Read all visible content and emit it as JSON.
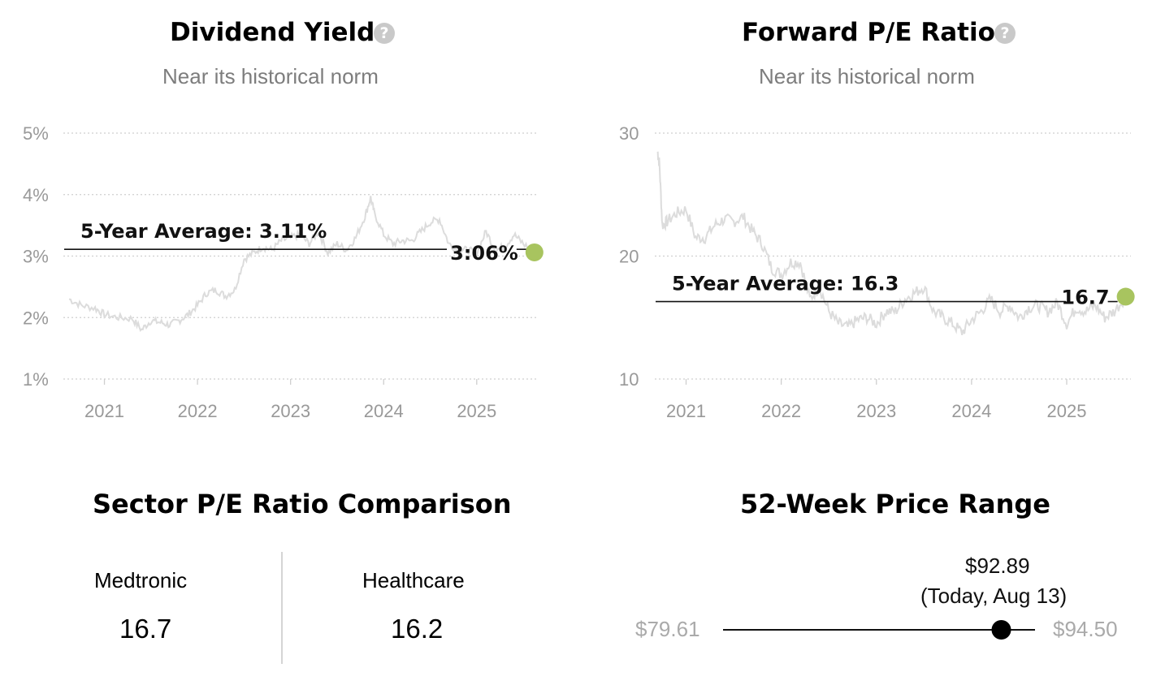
{
  "dividend": {
    "title": "Dividend Yield",
    "help_icon": "question-circle-icon",
    "subtitle": "Near its historical norm",
    "average_label": "5-Year Average: 3.11%",
    "current_label": "3:06%"
  },
  "forward_pe": {
    "title": "Forward P/E Ratio",
    "help_icon": "question-circle-icon",
    "subtitle": "Near its historical norm",
    "average_label": "5-Year Average: 16.3",
    "current_label": "16.7"
  },
  "chart_data": [
    {
      "type": "line",
      "title": "Dividend Yield",
      "y_tick_labels": [
        "5%",
        "4%",
        "3%",
        "2%",
        "1%"
      ],
      "y_ticks": [
        5,
        4,
        3,
        2,
        1
      ],
      "ylim": [
        1,
        5
      ],
      "x_tick_labels": [
        "2021",
        "2022",
        "2023",
        "2024",
        "2025"
      ],
      "x_ticks": [
        2021,
        2022,
        2023,
        2024,
        2025
      ],
      "xlim": [
        2020.62,
        2025.7
      ],
      "grid": "horizontal dotted",
      "series_color": "#dcdcdc",
      "average": 3.11,
      "current": {
        "x": 2025.62,
        "y": 3.06
      },
      "current_color": "#a8c45f",
      "x": [
        2020.62,
        2020.75,
        2020.9,
        2021.0,
        2021.15,
        2021.3,
        2021.4,
        2021.5,
        2021.6,
        2021.7,
        2021.8,
        2021.9,
        2022.0,
        2022.1,
        2022.2,
        2022.3,
        2022.4,
        2022.5,
        2022.6,
        2022.7,
        2022.8,
        2022.9,
        2023.0,
        2023.1,
        2023.2,
        2023.3,
        2023.4,
        2023.5,
        2023.6,
        2023.7,
        2023.8,
        2023.86,
        2023.9,
        2024.0,
        2024.1,
        2024.2,
        2024.3,
        2024.4,
        2024.5,
        2024.6,
        2024.7,
        2024.8,
        2024.9,
        2025.0,
        2025.1,
        2025.2,
        2025.3,
        2025.4,
        2025.5,
        2025.62
      ],
      "values": [
        2.3,
        2.2,
        2.15,
        2.05,
        2.0,
        1.98,
        1.8,
        1.95,
        1.92,
        1.88,
        1.95,
        2.05,
        2.2,
        2.4,
        2.45,
        2.35,
        2.45,
        2.95,
        3.05,
        3.15,
        3.1,
        3.25,
        3.3,
        3.35,
        3.2,
        3.4,
        3.05,
        3.2,
        3.1,
        3.3,
        3.65,
        3.95,
        3.7,
        3.35,
        3.2,
        3.25,
        3.25,
        3.4,
        3.55,
        3.6,
        3.2,
        3.1,
        3.1,
        3.05,
        3.4,
        3.1,
        3.15,
        3.35,
        3.2,
        3.06
      ]
    },
    {
      "type": "line",
      "title": "Forward P/E Ratio",
      "y_tick_labels": [
        "30",
        "20",
        "10"
      ],
      "y_ticks": [
        30,
        20,
        10
      ],
      "ylim": [
        10,
        30
      ],
      "x_tick_labels": [
        "2021",
        "2022",
        "2023",
        "2024",
        "2025"
      ],
      "x_ticks": [
        2021,
        2022,
        2023,
        2024,
        2025
      ],
      "xlim": [
        2020.62,
        2025.7
      ],
      "grid": "horizontal dotted",
      "series_color": "#dcdcdc",
      "average": 16.3,
      "current": {
        "x": 2025.62,
        "y": 16.7
      },
      "current_color": "#a8c45f",
      "x": [
        2020.7,
        2020.72,
        2020.75,
        2020.8,
        2020.9,
        2021.0,
        2021.1,
        2021.2,
        2021.3,
        2021.4,
        2021.5,
        2021.6,
        2021.7,
        2021.8,
        2021.9,
        2022.0,
        2022.1,
        2022.2,
        2022.3,
        2022.4,
        2022.5,
        2022.6,
        2022.7,
        2022.8,
        2022.9,
        2023.0,
        2023.1,
        2023.2,
        2023.3,
        2023.4,
        2023.5,
        2023.6,
        2023.7,
        2023.8,
        2023.9,
        2024.0,
        2024.1,
        2024.2,
        2024.3,
        2024.4,
        2024.5,
        2024.6,
        2024.7,
        2024.8,
        2024.9,
        2025.0,
        2025.1,
        2025.2,
        2025.3,
        2025.4,
        2025.5,
        2025.62
      ],
      "values": [
        28.5,
        27.5,
        22.5,
        22.8,
        23.5,
        23.8,
        21.5,
        21.5,
        22.5,
        23.0,
        22.8,
        23.2,
        22.0,
        21.0,
        19.0,
        18.5,
        19.5,
        19.5,
        16.5,
        17.5,
        15.5,
        14.5,
        14.2,
        14.8,
        15.0,
        14.5,
        15.5,
        15.5,
        16.5,
        17.0,
        17.5,
        15.5,
        15.0,
        14.5,
        13.8,
        14.8,
        15.5,
        16.5,
        15.5,
        16.0,
        15.0,
        15.8,
        16.0,
        15.5,
        16.2,
        14.5,
        15.8,
        15.5,
        16.0,
        15.0,
        15.5,
        16.7
      ]
    }
  ],
  "sector": {
    "title": "Sector P/E Ratio Comparison",
    "items": [
      {
        "name": "Medtronic",
        "value": "16.7"
      },
      {
        "name": "Healthcare",
        "value": "16.2"
      }
    ]
  },
  "price_range": {
    "title": "52-Week Price Range",
    "low_label": "$79.61",
    "high_label": "$94.50",
    "current_price": "$92.89",
    "current_note": "(Today, Aug 13)",
    "low": 79.61,
    "high": 94.5,
    "current": 92.89
  }
}
